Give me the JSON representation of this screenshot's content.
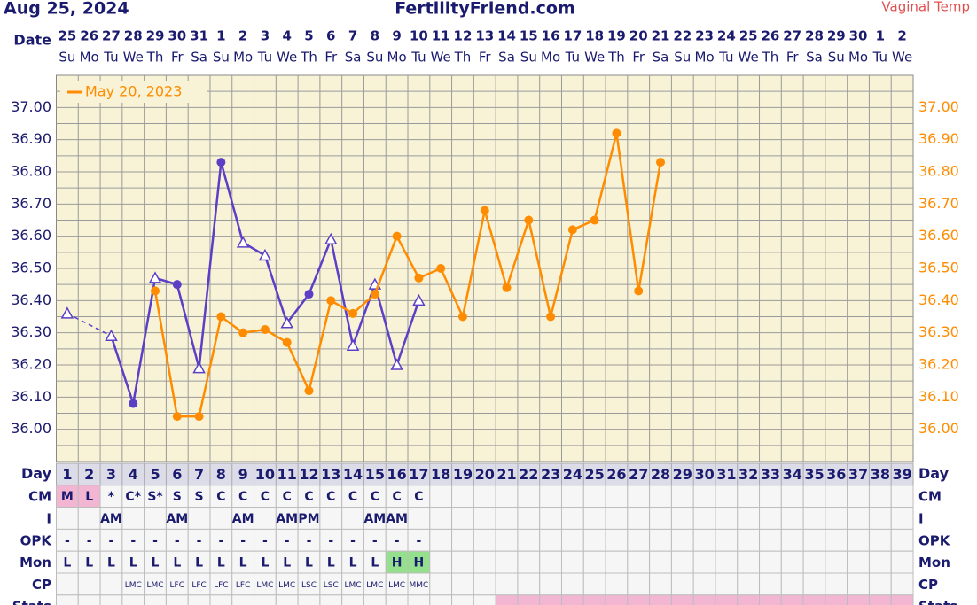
{
  "header": {
    "date": "Aug 25, 2024",
    "site": "FertilityFriend.com",
    "temp_type": "Vaginal Temp"
  },
  "chart_data": {
    "type": "line",
    "x_label": "Date",
    "dates": [
      25,
      26,
      27,
      28,
      29,
      30,
      31,
      1,
      2,
      3,
      4,
      5,
      6,
      7,
      8,
      9,
      10,
      11,
      12,
      13,
      14,
      15,
      16,
      17,
      18,
      19,
      20,
      21,
      22,
      23,
      24,
      25,
      26,
      27,
      28,
      29,
      30,
      1,
      2
    ],
    "weekdays": [
      "Su",
      "Mo",
      "Tu",
      "We",
      "Th",
      "Fr",
      "Sa",
      "Su",
      "Mo",
      "Tu",
      "We",
      "Th",
      "Fr",
      "Sa",
      "Su",
      "Mo",
      "Tu",
      "We",
      "Th",
      "Fr",
      "Sa",
      "Su",
      "Mo",
      "Tu",
      "We",
      "Th",
      "Fr",
      "Sa",
      "Su",
      "Mo",
      "Tu",
      "We",
      "Th",
      "Fr",
      "Sa",
      "Su",
      "Mo",
      "Tu",
      "We"
    ],
    "ylim": [
      35.9,
      37.1
    ],
    "yticks": [
      {
        "value": 36.0,
        "label": "36.00"
      },
      {
        "value": 36.1,
        "label": "36.10"
      },
      {
        "value": 36.2,
        "label": "36.20"
      },
      {
        "value": 36.3,
        "label": "36.30"
      },
      {
        "value": 36.4,
        "label": "36.40"
      },
      {
        "value": 36.5,
        "label": "36.50"
      },
      {
        "value": 36.6,
        "label": "36.60"
      },
      {
        "value": 36.7,
        "label": "36.70"
      },
      {
        "value": 36.8,
        "label": "36.80"
      },
      {
        "value": 36.9,
        "label": "36.90"
      },
      {
        "value": 37.0,
        "label": "37.00"
      }
    ],
    "grid": true,
    "legend": "top-left",
    "series": [
      {
        "color": "#5b3fc6",
        "values": [
          36.36,
          null,
          36.29,
          36.08,
          36.47,
          36.45,
          36.19,
          36.83,
          36.58,
          36.54,
          36.33,
          36.42,
          36.59,
          36.26,
          36.45,
          36.2,
          36.4,
          null,
          null,
          null,
          null,
          null,
          null,
          null,
          null,
          null,
          null,
          null,
          null,
          null,
          null,
          null,
          null,
          null,
          null,
          null,
          null,
          null,
          null
        ],
        "markers": [
          "triangle",
          null,
          "triangle",
          "circle",
          "triangle",
          "circle",
          "triangle",
          "circle",
          "triangle",
          "triangle",
          "triangle",
          "circle",
          "triangle",
          "triangle",
          "triangle",
          "triangle",
          "triangle",
          null,
          null,
          null,
          null,
          null,
          null,
          null,
          null,
          null,
          null,
          null,
          null,
          null,
          null,
          null,
          null,
          null,
          null,
          null,
          null,
          null,
          null
        ]
      },
      {
        "name": "May 20, 2023",
        "color": "#ff8c00",
        "values": [
          null,
          null,
          null,
          null,
          36.43,
          36.04,
          36.04,
          36.35,
          36.3,
          36.31,
          36.27,
          36.12,
          36.4,
          36.36,
          36.42,
          36.6,
          36.47,
          36.5,
          36.35,
          36.68,
          36.44,
          36.65,
          36.35,
          36.62,
          36.65,
          36.92,
          36.43,
          36.83,
          null,
          null,
          null,
          null,
          null,
          null,
          null,
          null,
          null,
          null,
          null
        ]
      }
    ]
  },
  "table": {
    "day_label": "Day",
    "days": [
      1,
      2,
      3,
      4,
      5,
      6,
      7,
      8,
      9,
      10,
      11,
      12,
      13,
      14,
      15,
      16,
      17,
      18,
      19,
      20,
      21,
      22,
      23,
      24,
      25,
      26,
      27,
      28,
      29,
      30,
      31,
      32,
      33,
      34,
      35,
      36,
      37,
      38,
      39
    ],
    "rows": [
      {
        "label": "CM",
        "small": false,
        "cells": [
          "M",
          "L",
          "*",
          "C*",
          "S*",
          "S",
          "S",
          "C",
          "C",
          "C",
          "C",
          "C",
          "C",
          "C",
          "C",
          "C",
          "C",
          null,
          null,
          null,
          null,
          null,
          null,
          null,
          null,
          null,
          null,
          null,
          null,
          null,
          null,
          null,
          null,
          null,
          null,
          null,
          null,
          null,
          null
        ],
        "highlight": {
          "color": "#f2b6d2",
          "days": [
            1,
            2
          ]
        }
      },
      {
        "label": "I",
        "small": false,
        "cells": [
          null,
          null,
          "AM",
          null,
          null,
          "AM",
          null,
          null,
          "AM",
          null,
          "AM",
          "PM",
          null,
          null,
          "AM",
          "AM",
          null,
          null,
          null,
          null,
          null,
          null,
          null,
          null,
          null,
          null,
          null,
          null,
          null,
          null,
          null,
          null,
          null,
          null,
          null,
          null,
          null,
          null,
          null
        ]
      },
      {
        "label": "OPK",
        "small": false,
        "cells": [
          "-",
          "-",
          "-",
          "-",
          "-",
          "-",
          "-",
          "-",
          "-",
          "-",
          "-",
          "-",
          "-",
          "-",
          "-",
          "-",
          "-",
          null,
          null,
          null,
          null,
          null,
          null,
          null,
          null,
          null,
          null,
          null,
          null,
          null,
          null,
          null,
          null,
          null,
          null,
          null,
          null,
          null,
          null
        ]
      },
      {
        "label": "Mon",
        "small": false,
        "cells": [
          "L",
          "L",
          "L",
          "L",
          "L",
          "L",
          "L",
          "L",
          "L",
          "L",
          "L",
          "L",
          "L",
          "L",
          "L",
          "H",
          "H",
          null,
          null,
          null,
          null,
          null,
          null,
          null,
          null,
          null,
          null,
          null,
          null,
          null,
          null,
          null,
          null,
          null,
          null,
          null,
          null,
          null,
          null
        ],
        "highlight": {
          "color": "#94e08c",
          "days": [
            16,
            17
          ]
        }
      },
      {
        "label": "CP",
        "small": true,
        "cells": [
          null,
          null,
          null,
          "LMC",
          "LMC",
          "LFC",
          "LFC",
          "LFC",
          "LFC",
          "LMC",
          "LMC",
          "LSC",
          "LSC",
          "LMC",
          "LMC",
          "LMC",
          "MMC",
          null,
          null,
          null,
          null,
          null,
          null,
          null,
          null,
          null,
          null,
          null,
          null,
          null,
          null,
          null,
          null,
          null,
          null,
          null,
          null,
          null,
          null
        ]
      },
      {
        "label": "Stats",
        "small": false,
        "cells": [
          null,
          null,
          null,
          null,
          null,
          null,
          null,
          null,
          null,
          null,
          null,
          null,
          null,
          null,
          null,
          null,
          null,
          null,
          null,
          null,
          null,
          null,
          null,
          null,
          null,
          null,
          null,
          null,
          null,
          null,
          null,
          null,
          null,
          null,
          null,
          null,
          null,
          null,
          null
        ],
        "highlight": {
          "color": "#f2b6d2",
          "days": [
            21,
            22,
            23,
            24,
            25,
            26,
            27,
            28,
            29,
            30,
            31,
            32,
            33,
            34,
            35,
            36,
            37,
            38,
            39
          ]
        }
      }
    ]
  }
}
